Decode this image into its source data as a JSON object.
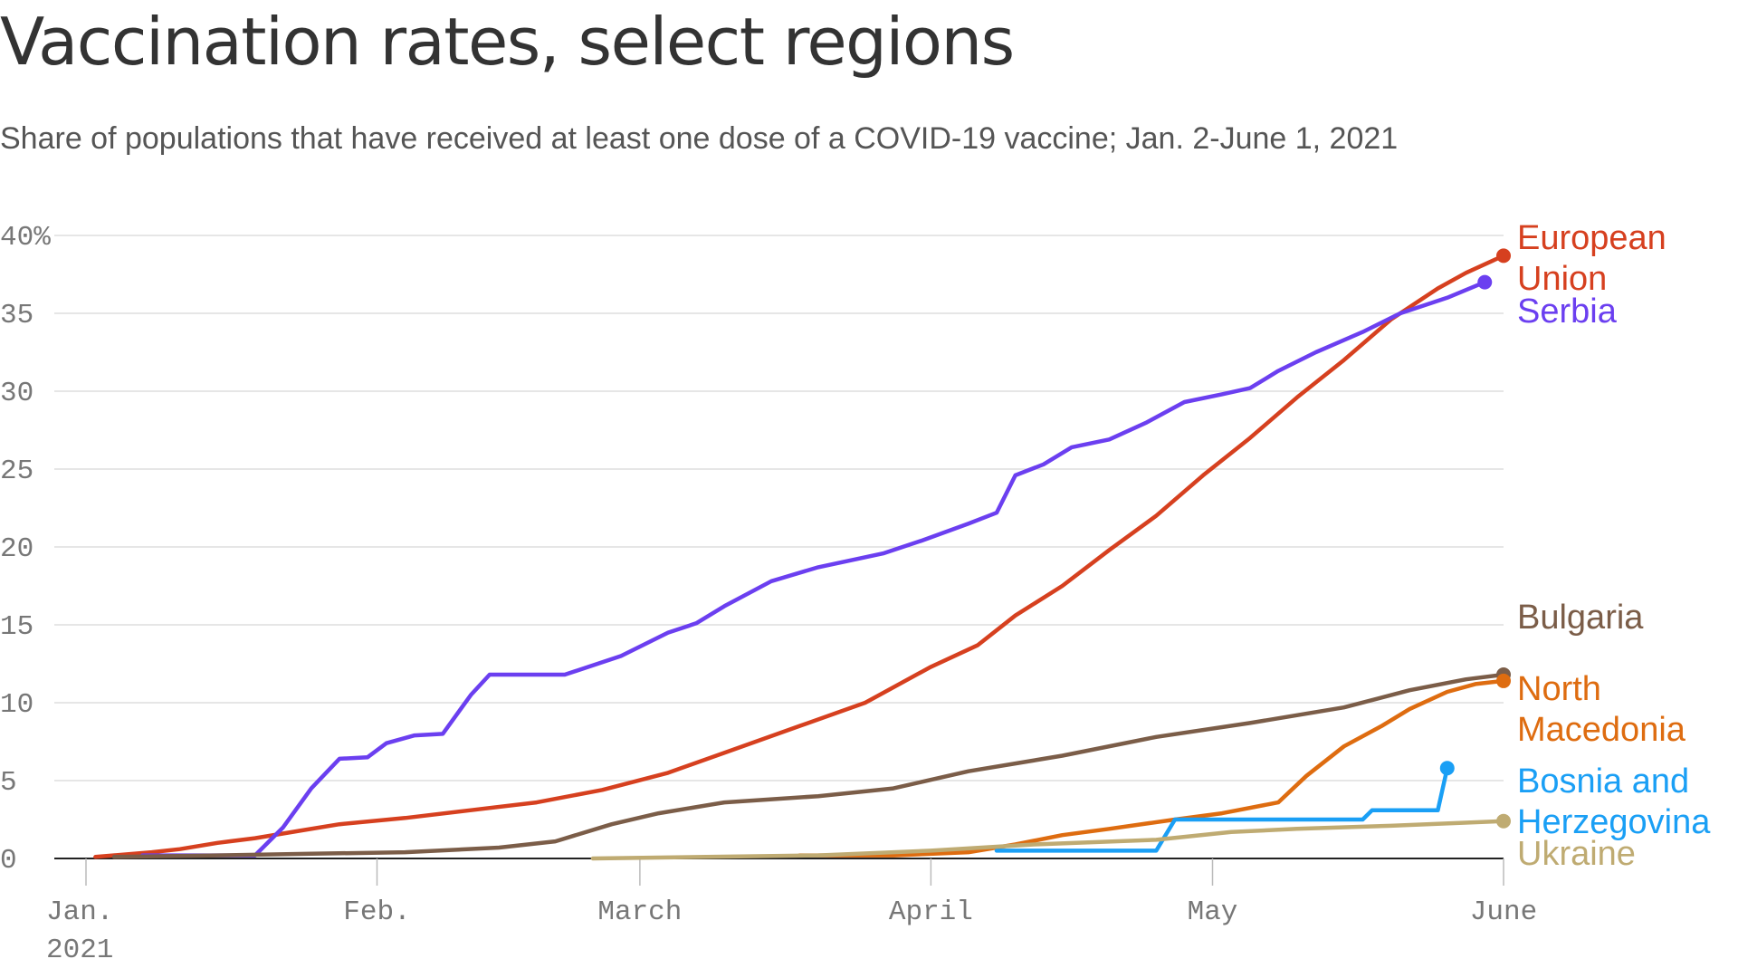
{
  "title": "Vaccination rates, select regions",
  "subtitle": "Share of populations that have received at least one dose of a COVID-19 vaccine; Jan. 2-June 1, 2021",
  "chart_data": {
    "type": "line",
    "xlabel": "",
    "ylabel": "",
    "ylim": [
      0,
      40
    ],
    "grid": true,
    "y_ticks": [
      {
        "value": 0,
        "label": "0"
      },
      {
        "value": 5,
        "label": "5"
      },
      {
        "value": 10,
        "label": "10"
      },
      {
        "value": 15,
        "label": "15"
      },
      {
        "value": 20,
        "label": "20"
      },
      {
        "value": 25,
        "label": "25"
      },
      {
        "value": 30,
        "label": "30"
      },
      {
        "value": 35,
        "label": "35"
      },
      {
        "value": 40,
        "label": "40%"
      }
    ],
    "x_ticks": [
      {
        "date": "2021-01-01",
        "lines": [
          "Jan.",
          "2021"
        ]
      },
      {
        "date": "2021-02-01",
        "lines": [
          "Feb."
        ]
      },
      {
        "date": "2021-03-01",
        "lines": [
          "March"
        ]
      },
      {
        "date": "2021-04-01",
        "lines": [
          "April"
        ]
      },
      {
        "date": "2021-05-01",
        "lines": [
          "May"
        ]
      },
      {
        "date": "2021-06-01",
        "lines": [
          "June"
        ]
      }
    ],
    "series": [
      {
        "name": "European Union",
        "label_lines": [
          "European",
          "Union"
        ],
        "color": "#d6401f",
        "points": [
          [
            "2021-01-02",
            0.1
          ],
          [
            "2021-01-08",
            0.4
          ],
          [
            "2021-01-11",
            0.6
          ],
          [
            "2021-01-15",
            1.0
          ],
          [
            "2021-01-19",
            1.3
          ],
          [
            "2021-01-24",
            1.8
          ],
          [
            "2021-01-28",
            2.2
          ],
          [
            "2021-02-04",
            2.6
          ],
          [
            "2021-02-11",
            3.1
          ],
          [
            "2021-02-18",
            3.6
          ],
          [
            "2021-02-25",
            4.4
          ],
          [
            "2021-03-04",
            5.5
          ],
          [
            "2021-03-11",
            7.0
          ],
          [
            "2021-03-18",
            8.5
          ],
          [
            "2021-03-25",
            10.0
          ],
          [
            "2021-04-01",
            12.3
          ],
          [
            "2021-04-06",
            13.7
          ],
          [
            "2021-04-10",
            15.6
          ],
          [
            "2021-04-15",
            17.5
          ],
          [
            "2021-04-20",
            19.8
          ],
          [
            "2021-04-25",
            22.0
          ],
          [
            "2021-04-30",
            24.6
          ],
          [
            "2021-05-05",
            27.0
          ],
          [
            "2021-05-10",
            29.6
          ],
          [
            "2021-05-15",
            32.0
          ],
          [
            "2021-05-20",
            34.6
          ],
          [
            "2021-05-25",
            36.6
          ],
          [
            "2021-05-28",
            37.6
          ],
          [
            "2021-06-01",
            38.7
          ]
        ]
      },
      {
        "name": "Serbia",
        "label_lines": [
          "Serbia"
        ],
        "color": "#6b3ff0",
        "points": [
          [
            "2021-01-07",
            0.2
          ],
          [
            "2021-01-15",
            0.2
          ],
          [
            "2021-01-19",
            0.2
          ],
          [
            "2021-01-22",
            2.0
          ],
          [
            "2021-01-25",
            4.5
          ],
          [
            "2021-01-28",
            6.4
          ],
          [
            "2021-01-31",
            6.5
          ],
          [
            "2021-02-02",
            7.4
          ],
          [
            "2021-02-05",
            7.9
          ],
          [
            "2021-02-08",
            8.0
          ],
          [
            "2021-02-11",
            10.5
          ],
          [
            "2021-02-13",
            11.8
          ],
          [
            "2021-02-21",
            11.8
          ],
          [
            "2021-02-27",
            13.0
          ],
          [
            "2021-03-04",
            14.5
          ],
          [
            "2021-03-07",
            15.1
          ],
          [
            "2021-03-10",
            16.2
          ],
          [
            "2021-03-15",
            17.8
          ],
          [
            "2021-03-20",
            18.7
          ],
          [
            "2021-03-27",
            19.6
          ],
          [
            "2021-03-31",
            20.4
          ],
          [
            "2021-04-05",
            21.5
          ],
          [
            "2021-04-08",
            22.2
          ],
          [
            "2021-04-10",
            24.6
          ],
          [
            "2021-04-13",
            25.3
          ],
          [
            "2021-04-16",
            26.4
          ],
          [
            "2021-04-20",
            26.9
          ],
          [
            "2021-04-24",
            28.0
          ],
          [
            "2021-04-28",
            29.3
          ],
          [
            "2021-05-02",
            29.8
          ],
          [
            "2021-05-05",
            30.2
          ],
          [
            "2021-05-08",
            31.3
          ],
          [
            "2021-05-12",
            32.5
          ],
          [
            "2021-05-17",
            33.8
          ],
          [
            "2021-05-21",
            35.0
          ],
          [
            "2021-05-26",
            36.0
          ],
          [
            "2021-05-30",
            37.0
          ]
        ]
      },
      {
        "name": "Bulgaria",
        "label_lines": [
          "Bulgaria"
        ],
        "color": "#7b5d48",
        "points": [
          [
            "2021-01-04",
            0.1
          ],
          [
            "2021-01-15",
            0.2
          ],
          [
            "2021-01-25",
            0.3
          ],
          [
            "2021-02-04",
            0.4
          ],
          [
            "2021-02-14",
            0.7
          ],
          [
            "2021-02-20",
            1.1
          ],
          [
            "2021-02-26",
            2.2
          ],
          [
            "2021-03-03",
            2.9
          ],
          [
            "2021-03-10",
            3.6
          ],
          [
            "2021-03-20",
            4.0
          ],
          [
            "2021-03-28",
            4.5
          ],
          [
            "2021-04-05",
            5.6
          ],
          [
            "2021-04-15",
            6.6
          ],
          [
            "2021-04-25",
            7.8
          ],
          [
            "2021-05-05",
            8.7
          ],
          [
            "2021-05-15",
            9.7
          ],
          [
            "2021-05-22",
            10.8
          ],
          [
            "2021-05-28",
            11.5
          ],
          [
            "2021-06-01",
            11.8
          ]
        ]
      },
      {
        "name": "North Macedonia",
        "label_lines": [
          "North",
          "Macedonia"
        ],
        "color": "#de6c10",
        "points": [
          [
            "2021-03-18",
            0.2
          ],
          [
            "2021-03-28",
            0.2
          ],
          [
            "2021-04-05",
            0.4
          ],
          [
            "2021-04-10",
            0.9
          ],
          [
            "2021-04-15",
            1.5
          ],
          [
            "2021-04-20",
            1.9
          ],
          [
            "2021-04-27",
            2.5
          ],
          [
            "2021-05-02",
            2.9
          ],
          [
            "2021-05-08",
            3.6
          ],
          [
            "2021-05-11",
            5.3
          ],
          [
            "2021-05-15",
            7.2
          ],
          [
            "2021-05-19",
            8.5
          ],
          [
            "2021-05-22",
            9.6
          ],
          [
            "2021-05-26",
            10.7
          ],
          [
            "2021-05-29",
            11.2
          ],
          [
            "2021-06-01",
            11.4
          ]
        ]
      },
      {
        "name": "Bosnia and Herzegovina",
        "label_lines": [
          "Bosnia and",
          "Herzegovina"
        ],
        "color": "#1a9ff5",
        "points": [
          [
            "2021-04-08",
            0.5
          ],
          [
            "2021-04-25",
            0.5
          ],
          [
            "2021-04-27",
            2.5
          ],
          [
            "2021-05-17",
            2.5
          ],
          [
            "2021-05-18",
            3.1
          ],
          [
            "2021-05-25",
            3.1
          ],
          [
            "2021-05-26",
            5.8
          ]
        ]
      },
      {
        "name": "Ukraine",
        "label_lines": [
          "Ukraine"
        ],
        "color": "#bfab72",
        "points": [
          [
            "2021-02-24",
            0.0
          ],
          [
            "2021-03-20",
            0.2
          ],
          [
            "2021-04-01",
            0.5
          ],
          [
            "2021-04-12",
            0.9
          ],
          [
            "2021-04-25",
            1.2
          ],
          [
            "2021-05-03",
            1.7
          ],
          [
            "2021-05-10",
            1.9
          ],
          [
            "2021-05-20",
            2.1
          ],
          [
            "2021-06-01",
            2.4
          ]
        ]
      }
    ]
  }
}
